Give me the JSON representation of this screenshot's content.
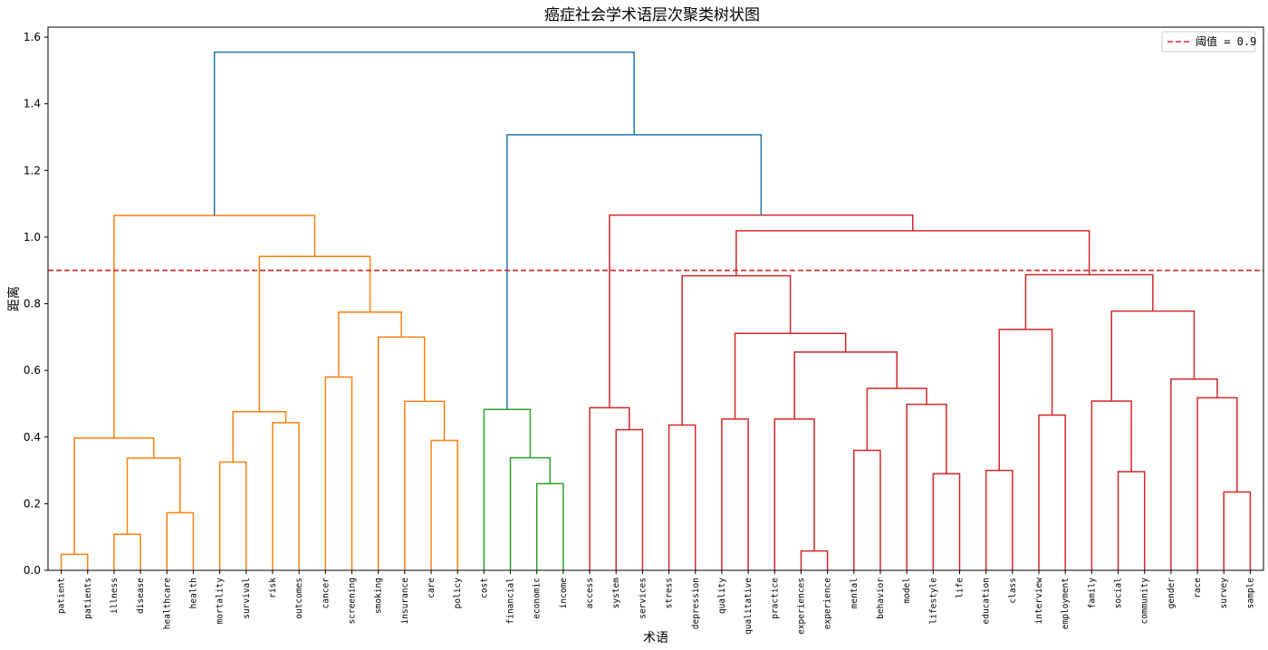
{
  "chart_data": {
    "type": "dendrogram",
    "title": "癌症社会学术语层次聚类树状图",
    "xlabel": "术语",
    "ylabel": "距离",
    "ylim": [
      0,
      1.63
    ],
    "yticks": [
      0.0,
      0.2,
      0.4,
      0.6,
      0.8,
      1.0,
      1.2,
      1.4,
      1.6
    ],
    "grid": false,
    "legend": {
      "position": "top-right",
      "entries": [
        {
          "label": "阈值 = 0.9",
          "color": "#d62728",
          "style": "dashed"
        }
      ]
    },
    "threshold": 0.9,
    "colors": {
      "above": "#1f77b4",
      "c1": "#ff7f0e",
      "c2": "#2ca02c",
      "c3": "#d62728"
    },
    "leaves": [
      "patient",
      "patients",
      "illness",
      "disease",
      "healthcare",
      "health",
      "mortality",
      "survival",
      "risk",
      "outcomes",
      "cancer",
      "screening",
      "smoking",
      "insurance",
      "care",
      "policy",
      "cost",
      "financial",
      "economic",
      "income",
      "access",
      "system",
      "services",
      "stress",
      "depression",
      "quality",
      "qualitative",
      "practice",
      "experiences",
      "experience",
      "mental",
      "behavior",
      "model",
      "lifestyle",
      "life",
      "education",
      "class",
      "interview",
      "employment",
      "family",
      "social",
      "community",
      "gender",
      "race",
      "survey",
      "sample"
    ],
    "merges": [
      {
        "a": "patient",
        "b": "patients",
        "h": 0.048,
        "color": "c1"
      },
      {
        "a": "illness",
        "b": "disease",
        "h": 0.108,
        "color": "c1"
      },
      {
        "a": "healthcare",
        "b": "health",
        "h": 0.173,
        "color": "c1"
      },
      {
        "a": "m2",
        "b": "m3",
        "h": 0.337,
        "color": "c1"
      },
      {
        "a": "m1",
        "b": "m4",
        "h": 0.397,
        "color": "c1"
      },
      {
        "a": "mortality",
        "b": "survival",
        "h": 0.325,
        "color": "c1"
      },
      {
        "a": "risk",
        "b": "outcomes",
        "h": 0.443,
        "color": "c1"
      },
      {
        "a": "m6",
        "b": "m7",
        "h": 0.476,
        "color": "c1"
      },
      {
        "a": "cancer",
        "b": "screening",
        "h": 0.58,
        "color": "c1"
      },
      {
        "a": "care",
        "b": "policy",
        "h": 0.39,
        "color": "c1"
      },
      {
        "a": "insurance",
        "b": "m10",
        "h": 0.507,
        "color": "c1"
      },
      {
        "a": "smoking",
        "b": "m11",
        "h": 0.7,
        "color": "c1"
      },
      {
        "a": "m9",
        "b": "m12",
        "h": 0.775,
        "color": "c1"
      },
      {
        "a": "m8",
        "b": "m13",
        "h": 0.942,
        "color": "c1"
      },
      {
        "a": "m5",
        "b": "m14",
        "h": 1.065,
        "color": "c1"
      },
      {
        "a": "economic",
        "b": "income",
        "h": 0.26,
        "color": "c2"
      },
      {
        "a": "financial",
        "b": "m16",
        "h": 0.338,
        "color": "c2"
      },
      {
        "a": "cost",
        "b": "m17",
        "h": 0.483,
        "color": "c2"
      },
      {
        "a": "system",
        "b": "services",
        "h": 0.422,
        "color": "c3"
      },
      {
        "a": "access",
        "b": "m19",
        "h": 0.488,
        "color": "c3"
      },
      {
        "a": "stress",
        "b": "depression",
        "h": 0.436,
        "color": "c3"
      },
      {
        "a": "quality",
        "b": "qualitative",
        "h": 0.454,
        "color": "c3"
      },
      {
        "a": "experiences",
        "b": "experience",
        "h": 0.058,
        "color": "c3"
      },
      {
        "a": "practice",
        "b": "m23",
        "h": 0.454,
        "color": "c3"
      },
      {
        "a": "mental",
        "b": "behavior",
        "h": 0.36,
        "color": "c3"
      },
      {
        "a": "lifestyle",
        "b": "life",
        "h": 0.29,
        "color": "c3"
      },
      {
        "a": "model",
        "b": "m26",
        "h": 0.498,
        "color": "c3"
      },
      {
        "a": "m25",
        "b": "m27",
        "h": 0.546,
        "color": "c3"
      },
      {
        "a": "m24",
        "b": "m28",
        "h": 0.655,
        "color": "c3"
      },
      {
        "a": "m22",
        "b": "m29",
        "h": 0.711,
        "color": "c3"
      },
      {
        "a": "m21",
        "b": "m30",
        "h": 0.884,
        "color": "c3"
      },
      {
        "a": "education",
        "b": "class",
        "h": 0.3,
        "color": "c3"
      },
      {
        "a": "interview",
        "b": "employment",
        "h": 0.466,
        "color": "c3"
      },
      {
        "a": "m32",
        "b": "m33",
        "h": 0.723,
        "color": "c3"
      },
      {
        "a": "social",
        "b": "community",
        "h": 0.296,
        "color": "c3"
      },
      {
        "a": "family",
        "b": "m35",
        "h": 0.508,
        "color": "c3"
      },
      {
        "a": "survey",
        "b": "sample",
        "h": 0.235,
        "color": "c3"
      },
      {
        "a": "race",
        "b": "m37",
        "h": 0.518,
        "color": "c3"
      },
      {
        "a": "gender",
        "b": "m38",
        "h": 0.574,
        "color": "c3"
      },
      {
        "a": "m36",
        "b": "m39",
        "h": 0.778,
        "color": "c3"
      },
      {
        "a": "m34",
        "b": "m40",
        "h": 0.887,
        "color": "c3"
      },
      {
        "a": "m31",
        "b": "m41",
        "h": 1.019,
        "color": "c3"
      },
      {
        "a": "m20",
        "b": "m42",
        "h": 1.066,
        "color": "c3"
      },
      {
        "a": "m18",
        "b": "m43",
        "h": 1.307,
        "color": "above"
      },
      {
        "a": "m15",
        "b": "m44",
        "h": 1.555,
        "color": "above"
      }
    ]
  }
}
